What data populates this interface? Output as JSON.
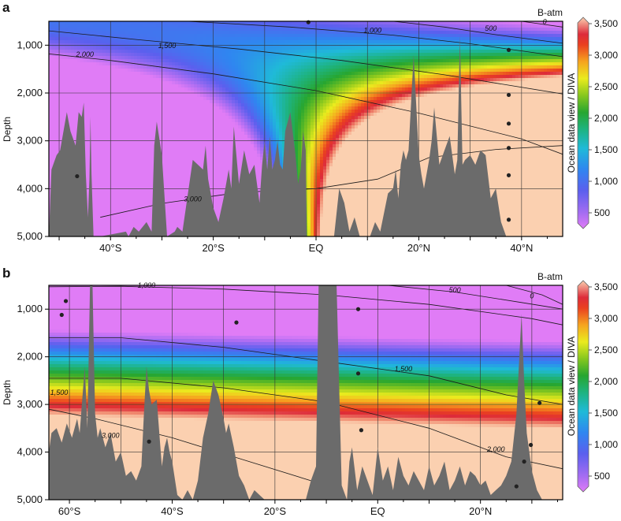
{
  "colorbar": {
    "ticks": [
      3500,
      3000,
      2500,
      2000,
      1500,
      1000,
      500
    ],
    "tick_labels": [
      "3,500",
      "3,000",
      "2,500",
      "2,000",
      "1,500",
      "1,000",
      "500"
    ],
    "range": [
      250,
      3600
    ],
    "caption": "Ocean data view / DIVA",
    "title": "B-atm"
  },
  "chart_data": [
    {
      "panel": "a",
      "type": "heatmap",
      "title": "B-atm",
      "ylabel": "Depth",
      "ylim": [
        5000,
        500
      ],
      "yticks": [
        1000,
        2000,
        3000,
        4000,
        5000
      ],
      "ytick_labels": [
        "1,000",
        "2,000",
        "3,000",
        "4,000",
        "5,000"
      ],
      "xlim": [
        -52,
        48
      ],
      "xticks": [
        -40,
        -20,
        0,
        20,
        40
      ],
      "xtick_labels": [
        "40°S",
        "20°S",
        "EQ",
        "20°N",
        "40°N"
      ],
      "value_range": [
        0,
        3500
      ],
      "contour_labels": [
        {
          "text": "0",
          "x": 44.5,
          "y": 560
        },
        {
          "text": "500",
          "x": 34,
          "y": 700
        },
        {
          "text": "1,000",
          "x": 11,
          "y": 740
        },
        {
          "text": "1,500",
          "x": -29,
          "y": 1060
        },
        {
          "text": "2,000",
          "x": -45,
          "y": 1240
        },
        {
          "text": "3,000",
          "x": -24,
          "y": 4270
        }
      ],
      "contours": [
        {
          "level": 0,
          "x": [
            40,
            44,
            48
          ],
          "y": [
            500,
            560,
            620
          ]
        },
        {
          "level": 500,
          "x": [
            15,
            25,
            35,
            48
          ],
          "y": [
            500,
            620,
            780,
            960
          ]
        },
        {
          "level": 1000,
          "x": [
            -25,
            -5,
            15,
            30,
            48
          ],
          "y": [
            500,
            620,
            790,
            970,
            1240
          ]
        },
        {
          "level": 1500,
          "x": [
            -52,
            -35,
            -15,
            5,
            25,
            48
          ],
          "y": [
            700,
            880,
            1080,
            1320,
            1620,
            2020
          ]
        },
        {
          "level": 2000,
          "x": [
            -52,
            -40,
            -20,
            0,
            20,
            40,
            48
          ],
          "y": [
            1180,
            1320,
            1600,
            1950,
            2420,
            2960,
            3280
          ]
        },
        {
          "level": 3000,
          "x": [
            -42,
            -30,
            -15,
            0,
            12,
            22,
            35,
            48
          ],
          "y": [
            4600,
            4310,
            4080,
            4000,
            3800,
            3350,
            3180,
            3100
          ]
        }
      ],
      "stations": [
        {
          "x": -1.5,
          "y": 520
        },
        {
          "x": 37.5,
          "y": 1100
        },
        {
          "x": 37.5,
          "y": 2040
        },
        {
          "x": 37.5,
          "y": 2640
        },
        {
          "x": 37.5,
          "y": 3150
        },
        {
          "x": 37.5,
          "y": 3720
        },
        {
          "x": 37.5,
          "y": 4650
        },
        {
          "x": -46.5,
          "y": 3740
        }
      ],
      "bathymetry_x": [
        -52,
        -51.5,
        -50.5,
        -49.8,
        -48.5,
        -47.8,
        -46.8,
        -46.2,
        -45.6,
        -45.2,
        -44.8,
        -44.4,
        -44.1,
        -43.9,
        -43.7,
        -43.3,
        -42,
        -37,
        -36.5,
        -35.5,
        -34.5,
        -33,
        -32,
        -31.5,
        -31,
        -30,
        -29,
        -27.5,
        -27,
        -26,
        -24,
        -22,
        -21.5,
        -21,
        -20,
        -19,
        -18,
        -17,
        -16.5,
        -16,
        -15,
        -14,
        -13,
        -12,
        -11,
        -10.5,
        -10,
        -9.5,
        -9,
        -8.5,
        -8,
        -7.5,
        -7,
        -6.5,
        -6,
        -5,
        -4,
        -3.5,
        -3,
        -2.5,
        -2,
        -1.8,
        0,
        3.5,
        4.5,
        5.5,
        6.5,
        7.5,
        8.5,
        10.5,
        11.5,
        12.5,
        14,
        15,
        15.5,
        16,
        16.5,
        17,
        17.5,
        18,
        19,
        20,
        20.5,
        21,
        22,
        22.5,
        23,
        24,
        25,
        26,
        27,
        27.5,
        28,
        28.5,
        29,
        30,
        31,
        32,
        33,
        34,
        35,
        36,
        37,
        37.3,
        38,
        48
      ],
      "bathymetry_depth": [
        5000,
        3600,
        3300,
        3200,
        2400,
        2800,
        3100,
        2400,
        2500,
        2200,
        3700,
        4600,
        3800,
        2500,
        3700,
        5000,
        5000,
        4900,
        5000,
        4800,
        4900,
        4700,
        4900,
        3100,
        2600,
        3300,
        5000,
        4900,
        4800,
        4900,
        3400,
        3600,
        3100,
        3800,
        4400,
        4700,
        4200,
        3600,
        4000,
        2700,
        3900,
        3200,
        3700,
        3500,
        4300,
        3500,
        3000,
        3600,
        2900,
        3600,
        3400,
        3000,
        3500,
        3600,
        2800,
        2400,
        3300,
        3900,
        3600,
        2800,
        3200,
        5000,
        5000,
        5000,
        4000,
        4300,
        4900,
        4600,
        5000,
        5000,
        4700,
        4900,
        4100,
        4000,
        3600,
        4200,
        3500,
        3200,
        3400,
        3200,
        1200,
        3300,
        3700,
        4000,
        3400,
        3000,
        2300,
        3500,
        3200,
        2900,
        3700,
        3400,
        800,
        3500,
        3400,
        3300,
        3500,
        3200,
        3300,
        4200,
        4000,
        4700,
        5000,
        5000,
        5000
      ]
    },
    {
      "panel": "b",
      "type": "heatmap",
      "title": "B-atm",
      "ylabel": "Depth",
      "ylim": [
        5000,
        500
      ],
      "yticks": [
        1000,
        2000,
        3000,
        4000,
        5000
      ],
      "ytick_labels": [
        "1,000",
        "2,000",
        "3,000",
        "4,000",
        "5,000"
      ],
      "xlim": [
        -64,
        36
      ],
      "xticks": [
        -60,
        -40,
        -20,
        0,
        20
      ],
      "xtick_labels": [
        "60°S",
        "40°S",
        "20°S",
        "EQ",
        "20°N"
      ],
      "value_range": [
        0,
        3500
      ],
      "contour_labels": [
        {
          "text": "1,000",
          "x": -45,
          "y": 550
        },
        {
          "text": "500",
          "x": 15,
          "y": 650
        },
        {
          "text": "0",
          "x": 30,
          "y": 770
        },
        {
          "text": "1,500",
          "x": 5,
          "y": 2300
        },
        {
          "text": "1,500",
          "x": -62,
          "y": 2800
        },
        {
          "text": "3,000",
          "x": -52,
          "y": 3700
        },
        {
          "text": "2,000",
          "x": 23,
          "y": 3990
        }
      ],
      "contours": [
        {
          "level": 0,
          "x": [
            25,
            32,
            36
          ],
          "y": [
            500,
            700,
            900
          ]
        },
        {
          "level": 500,
          "x": [
            2,
            15,
            28,
            36
          ],
          "y": [
            500,
            640,
            860,
            1000
          ]
        },
        {
          "level": 1000,
          "x": [
            -64,
            -50,
            -30,
            -10,
            10,
            30,
            36
          ],
          "y": [
            530,
            520,
            580,
            700,
            900,
            1200,
            1330
          ]
        },
        {
          "level": 1500,
          "x": [
            -64,
            -50,
            -30,
            -10,
            10,
            25,
            36
          ],
          "y": [
            1600,
            1600,
            1800,
            2100,
            2400,
            2800,
            3000
          ]
        },
        {
          "level": 2000,
          "x": [
            -64,
            -50,
            -30,
            -10,
            10,
            25,
            36
          ],
          "y": [
            2450,
            2450,
            2650,
            2950,
            3500,
            4100,
            4350
          ]
        },
        {
          "level": 3000,
          "x": [
            -64,
            -55,
            -40,
            -25,
            -10
          ],
          "y": [
            3100,
            3300,
            3700,
            4200,
            4700
          ]
        }
      ],
      "stations": [
        {
          "x": -61.5,
          "y": 1120
        },
        {
          "x": -60.7,
          "y": 830
        },
        {
          "x": -27.5,
          "y": 1280
        },
        {
          "x": -3.8,
          "y": 1000
        },
        {
          "x": -3.8,
          "y": 2350
        },
        {
          "x": -3.2,
          "y": 3540
        },
        {
          "x": -44.5,
          "y": 3780
        },
        {
          "x": 28.5,
          "y": 4200
        },
        {
          "x": 29.8,
          "y": 3850
        },
        {
          "x": 31.5,
          "y": 2970
        },
        {
          "x": 27,
          "y": 4720
        }
      ],
      "bathymetry_x": [
        -64,
        -63.5,
        -62.5,
        -61.5,
        -60.5,
        -59.5,
        -58.5,
        -58,
        -57,
        -56.5,
        -56,
        -55.5,
        -55,
        -54.5,
        -54,
        -53,
        -52,
        -51,
        -50,
        -49,
        -48,
        -47,
        -46,
        -45.5,
        -45,
        -44.5,
        -44,
        -43,
        -42,
        -41.5,
        -41,
        -40.5,
        -40,
        -39,
        -38,
        -37,
        -36,
        -35,
        -34,
        -33,
        -32,
        -31,
        -30,
        -29.5,
        -29,
        -28,
        -27,
        -26,
        -25,
        -24,
        -23,
        -22,
        -19,
        -16,
        -14,
        -13,
        -12,
        -11.5,
        -11,
        -10,
        -9,
        -8,
        -7,
        -6,
        -5.5,
        -5,
        -4,
        -3,
        -2,
        -1,
        0,
        1,
        2,
        3,
        4,
        5,
        6,
        7,
        8,
        9,
        10,
        11,
        12,
        13,
        14,
        15,
        16,
        17,
        18,
        19,
        20,
        21,
        22,
        23,
        24,
        25,
        26,
        27,
        28,
        28.5,
        29,
        30,
        31,
        32,
        33,
        36
      ],
      "bathymetry_depth": [
        4000,
        3600,
        3500,
        3800,
        3400,
        3700,
        3300,
        3600,
        2200,
        3500,
        500,
        500,
        3200,
        3700,
        3500,
        3900,
        3600,
        4200,
        4000,
        4500,
        4400,
        4600,
        4300,
        3200,
        2200,
        2700,
        3000,
        2900,
        4300,
        3900,
        3700,
        4000,
        4200,
        4900,
        5000,
        4800,
        5000,
        4600,
        3700,
        3200,
        2500,
        2800,
        3300,
        3600,
        3400,
        3900,
        4500,
        4700,
        5000,
        4800,
        4900,
        5000,
        5000,
        5000,
        5000,
        4600,
        4300,
        500,
        500,
        500,
        500,
        500,
        4700,
        5000,
        4200,
        3900,
        4800,
        4300,
        4600,
        4900,
        3900,
        4600,
        4300,
        4800,
        4100,
        4500,
        4700,
        4400,
        4600,
        4800,
        4300,
        4700,
        4500,
        4200,
        4800,
        4600,
        4300,
        4700,
        4400,
        4500,
        4700,
        4600,
        4900,
        4800,
        4700,
        4500,
        4200,
        3200,
        1100,
        2500,
        3600,
        4400,
        4800,
        5000
      ]
    }
  ]
}
